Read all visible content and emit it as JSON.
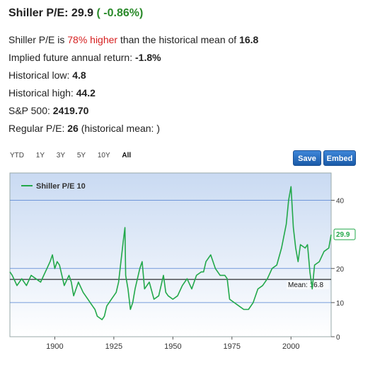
{
  "header": {
    "label": "Shiller P/E:",
    "value": "29.9",
    "change": "( -0.86%)"
  },
  "stats": {
    "line1": {
      "prefix": "Shiller P/E is ",
      "highlight": "78% higher",
      "suffix": " than the historical mean of ",
      "value": "16.8"
    },
    "implied": {
      "label": "Implied future annual return: ",
      "value": "-1.8%"
    },
    "low": {
      "label": "Historical low: ",
      "value": "4.8"
    },
    "high": {
      "label": "Historical high: ",
      "value": "44.2"
    },
    "sp500": {
      "label": "S&P 500: ",
      "value": "2419.70"
    },
    "regular": {
      "label": "Regular P/E: ",
      "value": "26",
      "suffix": " (historical mean: )"
    }
  },
  "ranges": [
    "YTD",
    "1Y",
    "3Y",
    "5Y",
    "10Y",
    "All"
  ],
  "buttons": {
    "save": "Save",
    "embed": "Embed"
  },
  "colors": {
    "line": "#22a84a",
    "plot_top": "#c9daf2",
    "plot_bottom": "#ffffff",
    "grid": "#4f7fd0",
    "change_green": "#2a8a2a",
    "highlight_red": "#d62020"
  },
  "chart_data": {
    "type": "line",
    "legend": "Shiller P/E 10",
    "legend_position": "top-left",
    "xlim": [
      1881,
      2017
    ],
    "ylim": [
      0,
      48
    ],
    "x_ticks": [
      1900,
      1925,
      1950,
      1975,
      2000
    ],
    "y_ticks": [
      0,
      10,
      20,
      40
    ],
    "grid": true,
    "mean_line": {
      "value": 16.8,
      "label": "Mean: 16.8"
    },
    "last_value_label": "29.9",
    "series": [
      {
        "name": "Shiller P/E 10",
        "x": [
          1881,
          1882,
          1884,
          1886,
          1888,
          1890,
          1892,
          1894,
          1896,
          1898,
          1899,
          1900,
          1901,
          1902,
          1904,
          1906,
          1907,
          1908,
          1910,
          1912,
          1914,
          1916,
          1917,
          1918,
          1920,
          1921,
          1922,
          1924,
          1926,
          1927,
          1928,
          1929,
          1929.7,
          1930,
          1931,
          1932,
          1933,
          1934,
          1936,
          1937,
          1938,
          1940,
          1942,
          1944,
          1946,
          1947,
          1948,
          1950,
          1952,
          1954,
          1956,
          1958,
          1960,
          1962,
          1963,
          1964,
          1966,
          1968,
          1970,
          1972,
          1973,
          1974,
          1976,
          1978,
          1980,
          1982,
          1984,
          1986,
          1988,
          1990,
          1992,
          1994,
          1996,
          1998,
          1999,
          2000,
          2001,
          2002,
          2003,
          2004,
          2006,
          2007,
          2008,
          2009,
          2010,
          2012,
          2014,
          2016,
          2017
        ],
        "y": [
          19,
          18,
          15,
          17,
          15,
          18,
          17,
          16,
          19,
          22,
          24,
          20,
          22,
          21,
          15,
          18,
          16,
          12,
          16,
          13,
          11,
          9,
          8,
          6,
          5,
          6,
          9,
          11,
          13,
          16,
          22,
          28,
          32,
          18,
          14,
          8,
          10,
          14,
          20,
          22,
          14,
          16,
          11,
          12,
          18,
          13,
          12,
          11,
          12,
          15,
          17,
          14,
          18,
          19,
          19,
          22,
          24,
          20,
          18,
          18,
          17,
          11,
          10,
          9,
          8,
          8,
          10,
          14,
          15,
          17,
          20,
          21,
          26,
          33,
          40,
          44,
          32,
          26,
          22,
          27,
          26,
          27,
          19,
          14,
          21,
          22,
          25,
          26,
          29.9
        ]
      }
    ]
  }
}
